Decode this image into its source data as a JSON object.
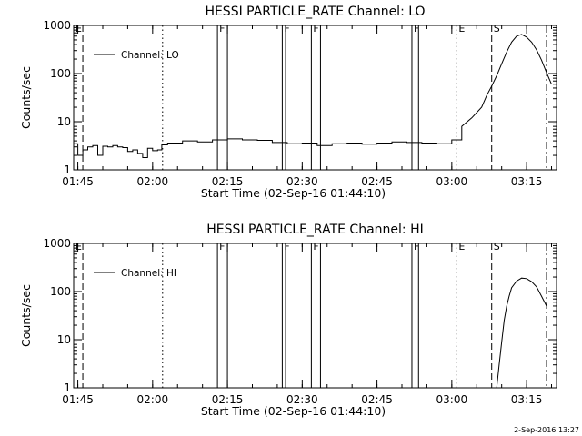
{
  "chart_data": [
    {
      "type": "line",
      "title": "HESSI PARTICLE_RATE Channel: LO",
      "xlabel": "Start Time (02-Sep-16 01:44:10)",
      "ylabel": "Counts/sec",
      "y_scale": "log",
      "ylim": [
        1,
        1000
      ],
      "xlim": [
        "01:44:10",
        "03:21:00"
      ],
      "x_tick_labels": [
        "01:45",
        "02:00",
        "02:15",
        "02:30",
        "02:45",
        "03:00",
        "03:15"
      ],
      "y_tick_labels": [
        "1",
        "10",
        "100",
        "1000"
      ],
      "legend": {
        "position": "top-left",
        "entries": [
          "Channel: LO"
        ]
      },
      "grid": false,
      "series": [
        {
          "name": "Channel: LO",
          "x": [
            "01:44:10",
            "01:45:00",
            "01:46:00",
            "01:47:00",
            "01:48:00",
            "01:49:00",
            "01:50:00",
            "01:51:00",
            "01:52:00",
            "01:53:00",
            "01:54:00",
            "01:55:00",
            "01:56:00",
            "01:57:00",
            "01:58:00",
            "01:59:00",
            "02:00:00",
            "02:01:00",
            "02:01:50",
            "02:03:00",
            "02:06:00",
            "02:09:00",
            "02:12:00",
            "02:15:00",
            "02:18:00",
            "02:21:00",
            "02:24:00",
            "02:27:00",
            "02:30:00",
            "02:33:00",
            "02:36:00",
            "02:39:00",
            "02:42:00",
            "02:45:00",
            "02:48:00",
            "02:51:00",
            "02:54:00",
            "02:57:00",
            "03:00:00",
            "03:02:00",
            "03:04:00",
            "03:06:00",
            "03:07:00",
            "03:08:00",
            "03:09:00",
            "03:10:00",
            "03:11:00",
            "03:12:00",
            "03:13:00",
            "03:14:00",
            "03:15:00",
            "03:16:00",
            "03:17:00",
            "03:18:00",
            "03:19:00",
            "03:20:00"
          ],
          "y": [
            3.5,
            2.0,
            2.6,
            3.0,
            3.2,
            2.0,
            3.1,
            3.0,
            3.2,
            3.0,
            2.9,
            2.4,
            2.6,
            2.2,
            1.8,
            2.8,
            2.5,
            2.6,
            3.3,
            3.6,
            4.0,
            3.8,
            4.2,
            4.4,
            4.2,
            4.1,
            3.7,
            3.5,
            3.6,
            3.2,
            3.5,
            3.6,
            3.4,
            3.6,
            3.8,
            3.7,
            3.6,
            3.5,
            4.2,
            8,
            12,
            20,
            35,
            55,
            90,
            160,
            280,
            450,
            600,
            650,
            570,
            450,
            310,
            190,
            105,
            60
          ]
        }
      ],
      "markers": [
        {
          "label": "E",
          "x": "01:44:10",
          "style": "solid"
        },
        {
          "label": "",
          "x": "01:46:00",
          "style": "dashed"
        },
        {
          "label": "",
          "x": "02:02:00",
          "style": "dotted"
        },
        {
          "label": "F",
          "x": "02:13:00",
          "style": "solid"
        },
        {
          "label": "",
          "x": "02:15:00",
          "style": "solid"
        },
        {
          "label": "F",
          "x": "02:26:00",
          "style": "solid"
        },
        {
          "label": "",
          "x": "02:26:40",
          "style": "solid"
        },
        {
          "label": "F",
          "x": "02:31:50",
          "style": "solid"
        },
        {
          "label": "",
          "x": "02:33:40",
          "style": "solid"
        },
        {
          "label": "F",
          "x": "02:52:00",
          "style": "solid"
        },
        {
          "label": "",
          "x": "02:53:20",
          "style": "solid"
        },
        {
          "label": "E",
          "x": "03:01:00",
          "style": "dotted"
        },
        {
          "label": "S",
          "x": "03:08:00",
          "style": "dashed"
        },
        {
          "label": "",
          "x": "03:19:00",
          "style": "dashdot"
        }
      ]
    },
    {
      "type": "line",
      "title": "HESSI PARTICLE_RATE Channel: HI",
      "xlabel": "Start Time (02-Sep-16 01:44:10)",
      "ylabel": "Counts/sec",
      "y_scale": "log",
      "ylim": [
        1,
        1000
      ],
      "xlim": [
        "01:44:10",
        "03:21:00"
      ],
      "x_tick_labels": [
        "01:45",
        "02:00",
        "02:15",
        "02:30",
        "02:45",
        "03:00",
        "03:15"
      ],
      "y_tick_labels": [
        "1",
        "10",
        "100",
        "1000"
      ],
      "legend": {
        "position": "top-left",
        "entries": [
          "Channel: HI"
        ]
      },
      "grid": false,
      "series": [
        {
          "name": "Channel: HI",
          "x": [
            "03:09:00",
            "03:09:30",
            "03:10:00",
            "03:10:30",
            "03:11:00",
            "03:11:30",
            "03:12:00",
            "03:13:00",
            "03:14:00",
            "03:15:00",
            "03:16:00",
            "03:17:00",
            "03:18:00",
            "03:19:00"
          ],
          "y": [
            1.0,
            3.0,
            9,
            25,
            50,
            80,
            120,
            165,
            190,
            185,
            160,
            125,
            80,
            50
          ]
        }
      ],
      "markers": [
        {
          "label": "E",
          "x": "01:44:10",
          "style": "solid"
        },
        {
          "label": "",
          "x": "01:46:00",
          "style": "dashed"
        },
        {
          "label": "",
          "x": "02:02:00",
          "style": "dotted"
        },
        {
          "label": "F",
          "x": "02:13:00",
          "style": "solid"
        },
        {
          "label": "",
          "x": "02:15:00",
          "style": "solid"
        },
        {
          "label": "F",
          "x": "02:26:00",
          "style": "solid"
        },
        {
          "label": "",
          "x": "02:26:40",
          "style": "solid"
        },
        {
          "label": "F",
          "x": "02:31:50",
          "style": "solid"
        },
        {
          "label": "",
          "x": "02:33:40",
          "style": "solid"
        },
        {
          "label": "F",
          "x": "02:52:00",
          "style": "solid"
        },
        {
          "label": "",
          "x": "02:53:20",
          "style": "solid"
        },
        {
          "label": "E",
          "x": "03:01:00",
          "style": "dotted"
        },
        {
          "label": "S",
          "x": "03:08:00",
          "style": "dashed"
        },
        {
          "label": "",
          "x": "03:19:00",
          "style": "dashdot"
        }
      ]
    }
  ],
  "footer": {
    "timestamp": "2-Sep-2016 13:27"
  }
}
